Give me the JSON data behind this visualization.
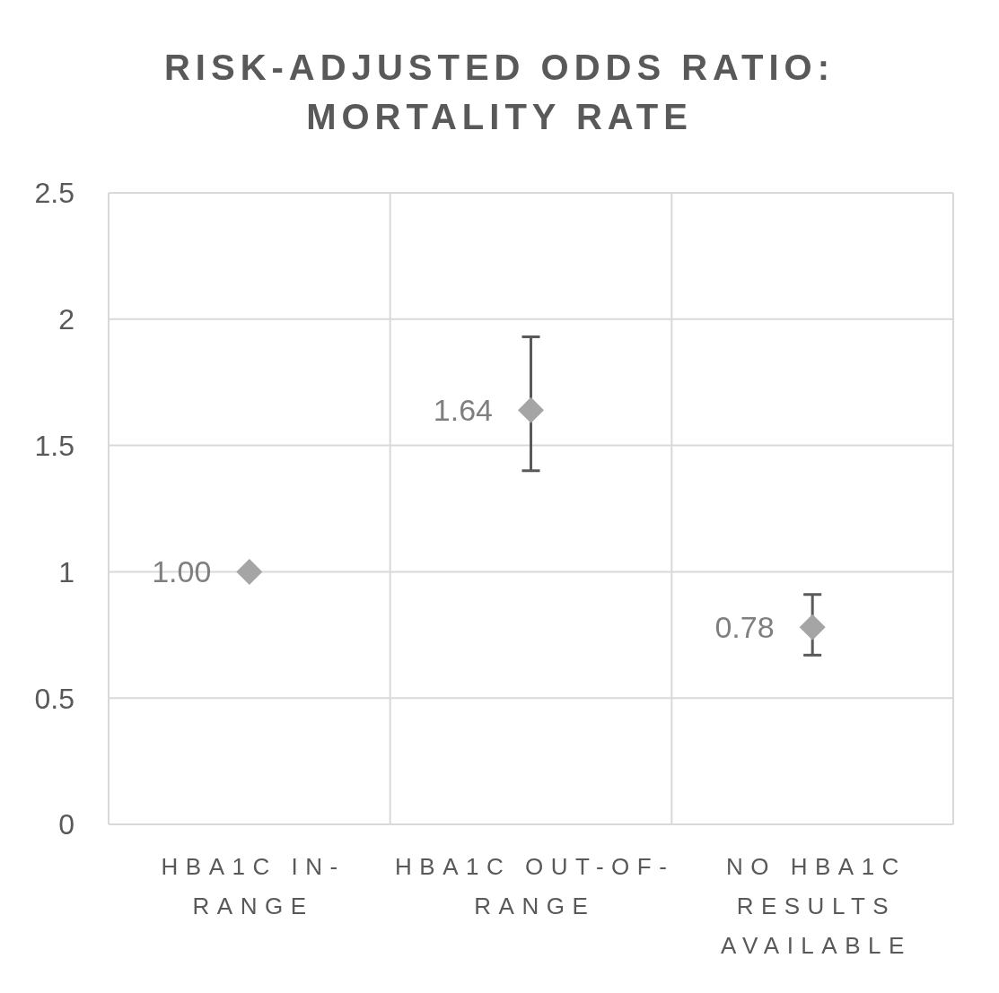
{
  "chart_data": {
    "type": "scatter",
    "title": "RISK-ADJUSTED ODDS RATIO: MORTALITY RATE",
    "categories": [
      "HBA1C IN-RANGE",
      "HBA1C OUT-OF-RANGE",
      "NO HBA1C RESULTS AVAILABLE"
    ],
    "values": [
      1,
      1.64,
      0.78
    ],
    "color": "#a5a5a5",
    "errors": [
      null,
      [
        1.4,
        1.93
      ],
      [
        0.67,
        0.91
      ]
    ],
    "value_labels": [
      "1.00",
      "1.64",
      "0.78"
    ],
    "ylim": [
      0,
      2.5
    ],
    "yticks": [
      0,
      0.5,
      1,
      1.5,
      2,
      2.5
    ],
    "grid": true,
    "marker": "diamond"
  }
}
